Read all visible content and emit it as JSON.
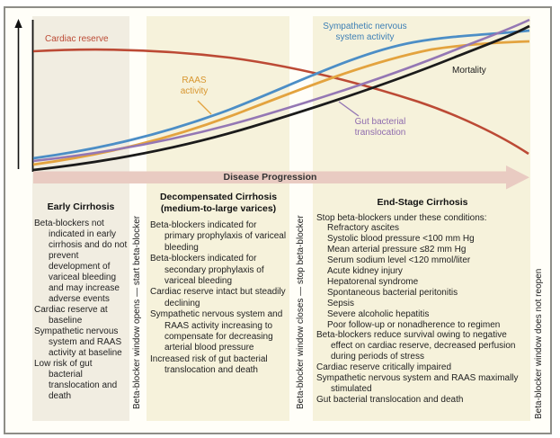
{
  "figure": {
    "x_axis_label": "Disease Progression",
    "window_labels": {
      "opens": "Beta-blocker window opens — start beta-blocker",
      "closes": "Beta-blocker window closes — stop beta-blocker",
      "no_reopen": "Beta-blocker window does not reopen"
    }
  },
  "chart": {
    "labels": {
      "cardiac_reserve": "Cardiac reserve",
      "raas": "RAAS activity",
      "sympathetic": "Sympathetic nervous system activity",
      "gut": "Gut bacterial translocation",
      "mortality": "Mortality"
    },
    "colors": {
      "cardiac_reserve": "#bc4a35",
      "raas": "#e3a33f",
      "sympathetic": "#4c8ec6",
      "gut": "#9477b4",
      "mortality": "#1b1b1b",
      "band": "#e9cbc2",
      "axis": "#111111"
    }
  },
  "chart_data": {
    "type": "line",
    "title": "",
    "xlabel": "Disease Progression (Early Cirrhosis → Decompensated Cirrhosis → End-Stage Cirrhosis)",
    "ylabel": "Relative level (unlabeled axis, increasing upward)",
    "x": [
      0,
      1,
      2,
      3,
      4,
      5,
      6,
      7,
      8,
      9,
      10
    ],
    "series": [
      {
        "name": "Cardiac reserve",
        "values": [
          97,
          97,
          96,
          94,
          91,
          87,
          81,
          74,
          65,
          55,
          45
        ]
      },
      {
        "name": "Sympathetic nervous system activity",
        "values": [
          8,
          12,
          20,
          32,
          46,
          60,
          72,
          81,
          86,
          88,
          90
        ]
      },
      {
        "name": "RAAS activity",
        "values": [
          5,
          8,
          14,
          24,
          37,
          51,
          63,
          72,
          78,
          81,
          82
        ]
      },
      {
        "name": "Gut bacterial translocation",
        "values": [
          7,
          10,
          15,
          22,
          31,
          42,
          54,
          66,
          78,
          89,
          98
        ]
      },
      {
        "name": "Mortality",
        "values": [
          2,
          5,
          9,
          15,
          23,
          33,
          45,
          58,
          71,
          84,
          95
        ]
      }
    ],
    "legend_position": "labels adjacent to curves",
    "grid": false
  },
  "panels": [
    {
      "title": "Early Cirrhosis",
      "subtitle": "",
      "items": [
        {
          "text": "Beta-blockers not indicated in early cirrhosis and do not prevent development of variceal bleeding and may increase adverse events",
          "indent": 0
        },
        {
          "text": "Cardiac reserve at baseline",
          "indent": 0
        },
        {
          "text": "Sympathetic nervous system and RAAS activity at baseline",
          "indent": 0
        },
        {
          "text": "Low risk of gut bacterial translocation and death",
          "indent": 0
        }
      ]
    },
    {
      "title": "Decompensated Cirrhosis",
      "subtitle": "(medium-to-large varices)",
      "items": [
        {
          "text": "Beta-blockers indicated for primary prophylaxis of variceal bleeding",
          "indent": 0
        },
        {
          "text": "Beta-blockers indicated for secondary prophylaxis of variceal bleeding",
          "indent": 0
        },
        {
          "text": "Cardiac reserve intact but steadily declining",
          "indent": 0
        },
        {
          "text": "Sympathetic nervous system and RAAS activity increasing to compensate for decreasing arterial blood pressure",
          "indent": 0
        },
        {
          "text": "Increased risk of gut bacterial translocation and death",
          "indent": 0
        }
      ]
    },
    {
      "title": "End-Stage Cirrhosis",
      "subtitle": "",
      "items": [
        {
          "text": "Stop beta-blockers under these conditions:",
          "indent": 0
        },
        {
          "text": "Refractory ascites",
          "indent": 1
        },
        {
          "text": "Systolic blood pressure <100 mm Hg",
          "indent": 1
        },
        {
          "text": "Mean arterial pressure ≤82 mm Hg",
          "indent": 1
        },
        {
          "text": "Serum sodium level <120 mmol/liter",
          "indent": 1
        },
        {
          "text": "Acute kidney injury",
          "indent": 1
        },
        {
          "text": "Hepatorenal syndrome",
          "indent": 1
        },
        {
          "text": "Spontaneous bacterial peritonitis",
          "indent": 1
        },
        {
          "text": "Sepsis",
          "indent": 1
        },
        {
          "text": "Severe alcoholic hepatitis",
          "indent": 1
        },
        {
          "text": "Poor follow-up or nonadherence to regimen",
          "indent": 1
        },
        {
          "text": "Beta-blockers reduce survival owing to negative effect on cardiac reserve, decreased perfusion during periods of stress",
          "indent": 0
        },
        {
          "text": "Cardiac reserve critically impaired",
          "indent": 0
        },
        {
          "text": "Sympathetic nervous system and RAAS maximally stimulated",
          "indent": 0
        },
        {
          "text": "Gut bacterial translocation and death",
          "indent": 0
        }
      ]
    }
  ]
}
